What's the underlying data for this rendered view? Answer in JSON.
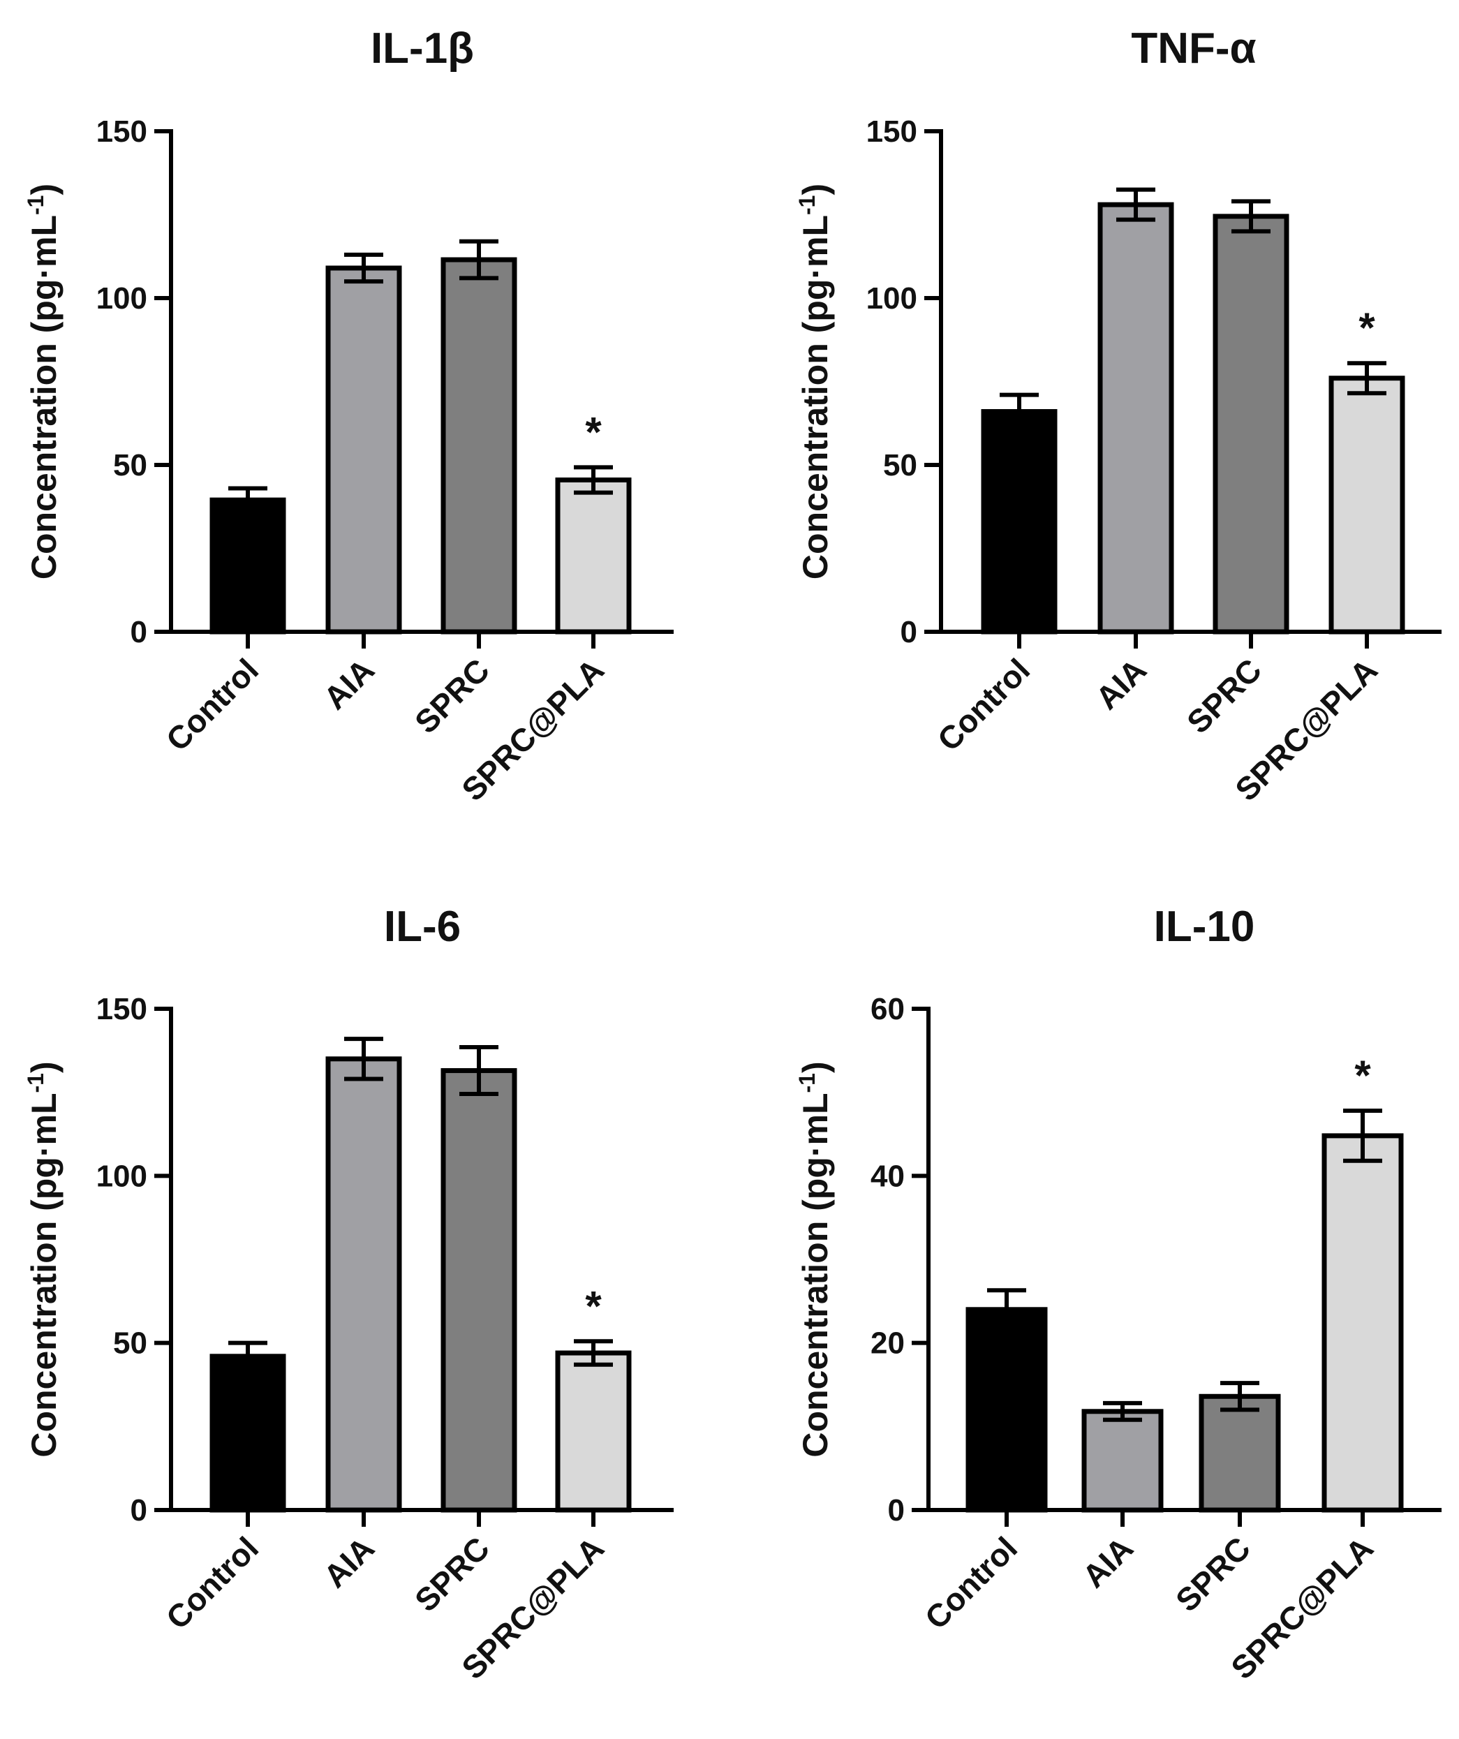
{
  "figure": {
    "bar_colors": [
      "#000000",
      "#a0a0a4",
      "#7f7f7f",
      "#d9d9d9"
    ],
    "outline_color": "#000000"
  },
  "chart_data": [
    {
      "type": "bar",
      "title": "IL-1β",
      "categories": [
        "Control",
        "AIA",
        "SPRC",
        "SPRC@PLA"
      ],
      "values": [
        39.5,
        109,
        111.5,
        45.5
      ],
      "errors": [
        3.5,
        4,
        5.5,
        3.8
      ],
      "significance": [
        "",
        "",
        "",
        "*"
      ],
      "ylabel": "Concentration (pg·mL",
      "ylabel_superscript": "-1",
      "ylabel_close": ")",
      "ylim": [
        0,
        150
      ],
      "yticks": [
        0,
        50,
        100,
        150
      ]
    },
    {
      "type": "bar",
      "title": "TNF-α",
      "categories": [
        "Control",
        "AIA",
        "SPRC",
        "SPRC@PLA"
      ],
      "values": [
        66,
        128,
        124.5,
        76
      ],
      "errors": [
        5,
        4.5,
        4.5,
        4.5
      ],
      "significance": [
        "",
        "",
        "",
        "*"
      ],
      "ylabel": "Concentration (pg·mL",
      "ylabel_superscript": "-1",
      "ylabel_close": ")",
      "ylim": [
        0,
        150
      ],
      "yticks": [
        0,
        50,
        100,
        150
      ]
    },
    {
      "type": "bar",
      "title": "IL-6",
      "categories": [
        "Control",
        "AIA",
        "SPRC",
        "SPRC@PLA"
      ],
      "values": [
        46,
        135,
        131.5,
        47
      ],
      "errors": [
        4,
        6,
        7,
        3.5
      ],
      "significance": [
        "",
        "",
        "",
        "*"
      ],
      "ylabel": "Concentration (pg·mL",
      "ylabel_superscript": "-1",
      "ylabel_close": ")",
      "ylim": [
        0,
        150
      ],
      "yticks": [
        0,
        50,
        100,
        150
      ]
    },
    {
      "type": "bar",
      "title": "IL-10",
      "categories": [
        "Control",
        "AIA",
        "SPRC",
        "SPRC@PLA"
      ],
      "values": [
        24,
        11.8,
        13.6,
        44.8
      ],
      "errors": [
        2.3,
        1.0,
        1.6,
        3.0
      ],
      "significance": [
        "",
        "",
        "",
        "*"
      ],
      "ylabel": "Concentration (pg·mL",
      "ylabel_superscript": "-1",
      "ylabel_close": ")",
      "ylim": [
        0,
        60
      ],
      "yticks": [
        0,
        20,
        40,
        60
      ]
    }
  ]
}
